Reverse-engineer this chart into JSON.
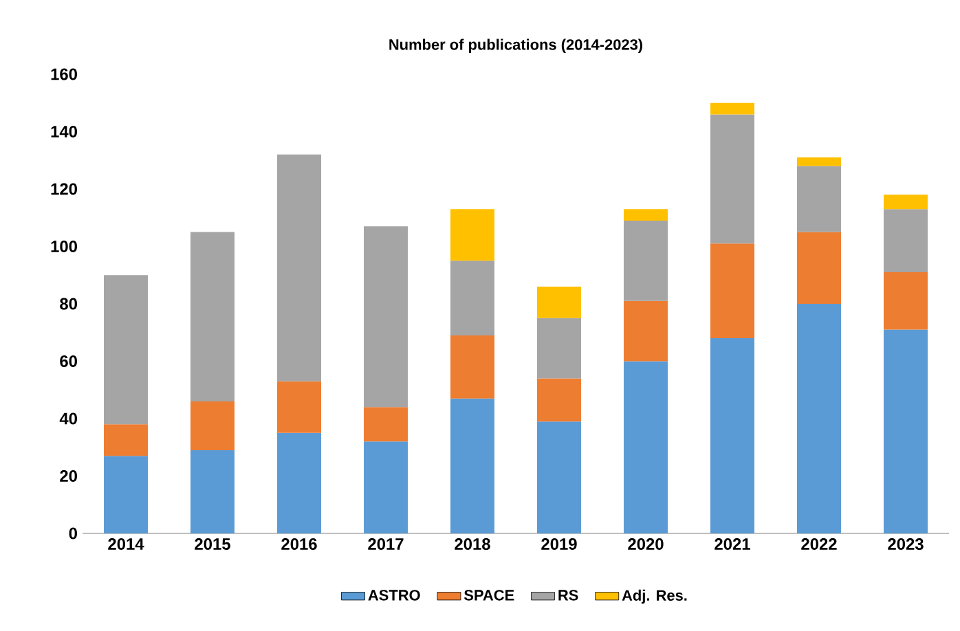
{
  "chart_data": {
    "type": "bar",
    "title": "Number of publications (2014-2023)",
    "stacked": true,
    "categories": [
      "2014",
      "2015",
      "2016",
      "2017",
      "2018",
      "2019",
      "2020",
      "2021",
      "2022",
      "2023"
    ],
    "series": [
      {
        "name": "ASTRO",
        "color": "#5b9bd5",
        "values": [
          27,
          29,
          35,
          32,
          47,
          39,
          60,
          68,
          80,
          71
        ]
      },
      {
        "name": "SPACE",
        "color": "#ed7d31",
        "values": [
          11,
          17,
          18,
          12,
          22,
          15,
          21,
          33,
          25,
          20
        ]
      },
      {
        "name": "RS",
        "color": "#a5a5a5",
        "values": [
          52,
          59,
          79,
          63,
          26,
          21,
          28,
          45,
          23,
          22
        ]
      },
      {
        "name": "Adj. Res.",
        "color": "#ffc000",
        "values": [
          null,
          null,
          null,
          null,
          18,
          11,
          4,
          4,
          3,
          5
        ]
      }
    ],
    "ylim": [
      0,
      160
    ],
    "yticks": [
      0,
      20,
      40,
      60,
      80,
      100,
      120,
      140,
      160
    ],
    "grid": false,
    "legend": "bottom"
  }
}
